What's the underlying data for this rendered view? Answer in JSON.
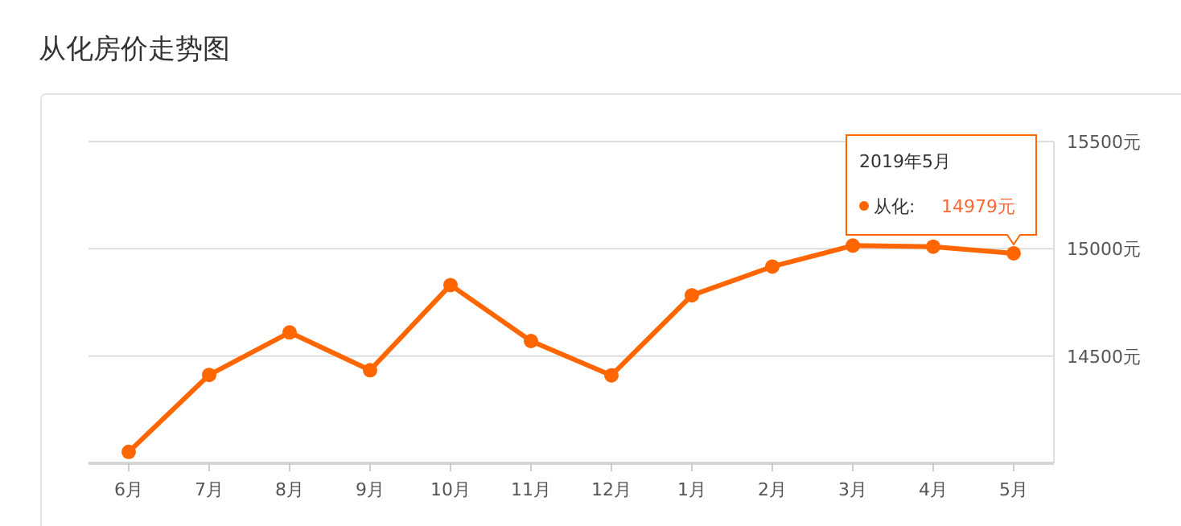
{
  "chart_data": {
    "type": "line",
    "title": "从化房价走势图",
    "categories": [
      "6月",
      "7月",
      "8月",
      "9月",
      "10月",
      "11月",
      "12月",
      "1月",
      "2月",
      "3月",
      "4月",
      "5月"
    ],
    "series": [
      {
        "color": "#ff6600",
        "values": [
          14053,
          14412,
          14610,
          14434,
          14831,
          14570,
          14410,
          14783,
          14917,
          15015,
          15010,
          14979
        ]
      }
    ],
    "ylim": [
      14000,
      15500
    ],
    "yticks": [
      {
        "value": 14500,
        "label": "14500元"
      },
      {
        "value": 15000,
        "label": "15000元"
      },
      {
        "value": 15500,
        "label": "15500元"
      }
    ],
    "grid": "y",
    "marker": "circle",
    "line_style": "solid",
    "annotations": [
      "2019年5月",
      "从化:",
      "14979元"
    ]
  }
}
